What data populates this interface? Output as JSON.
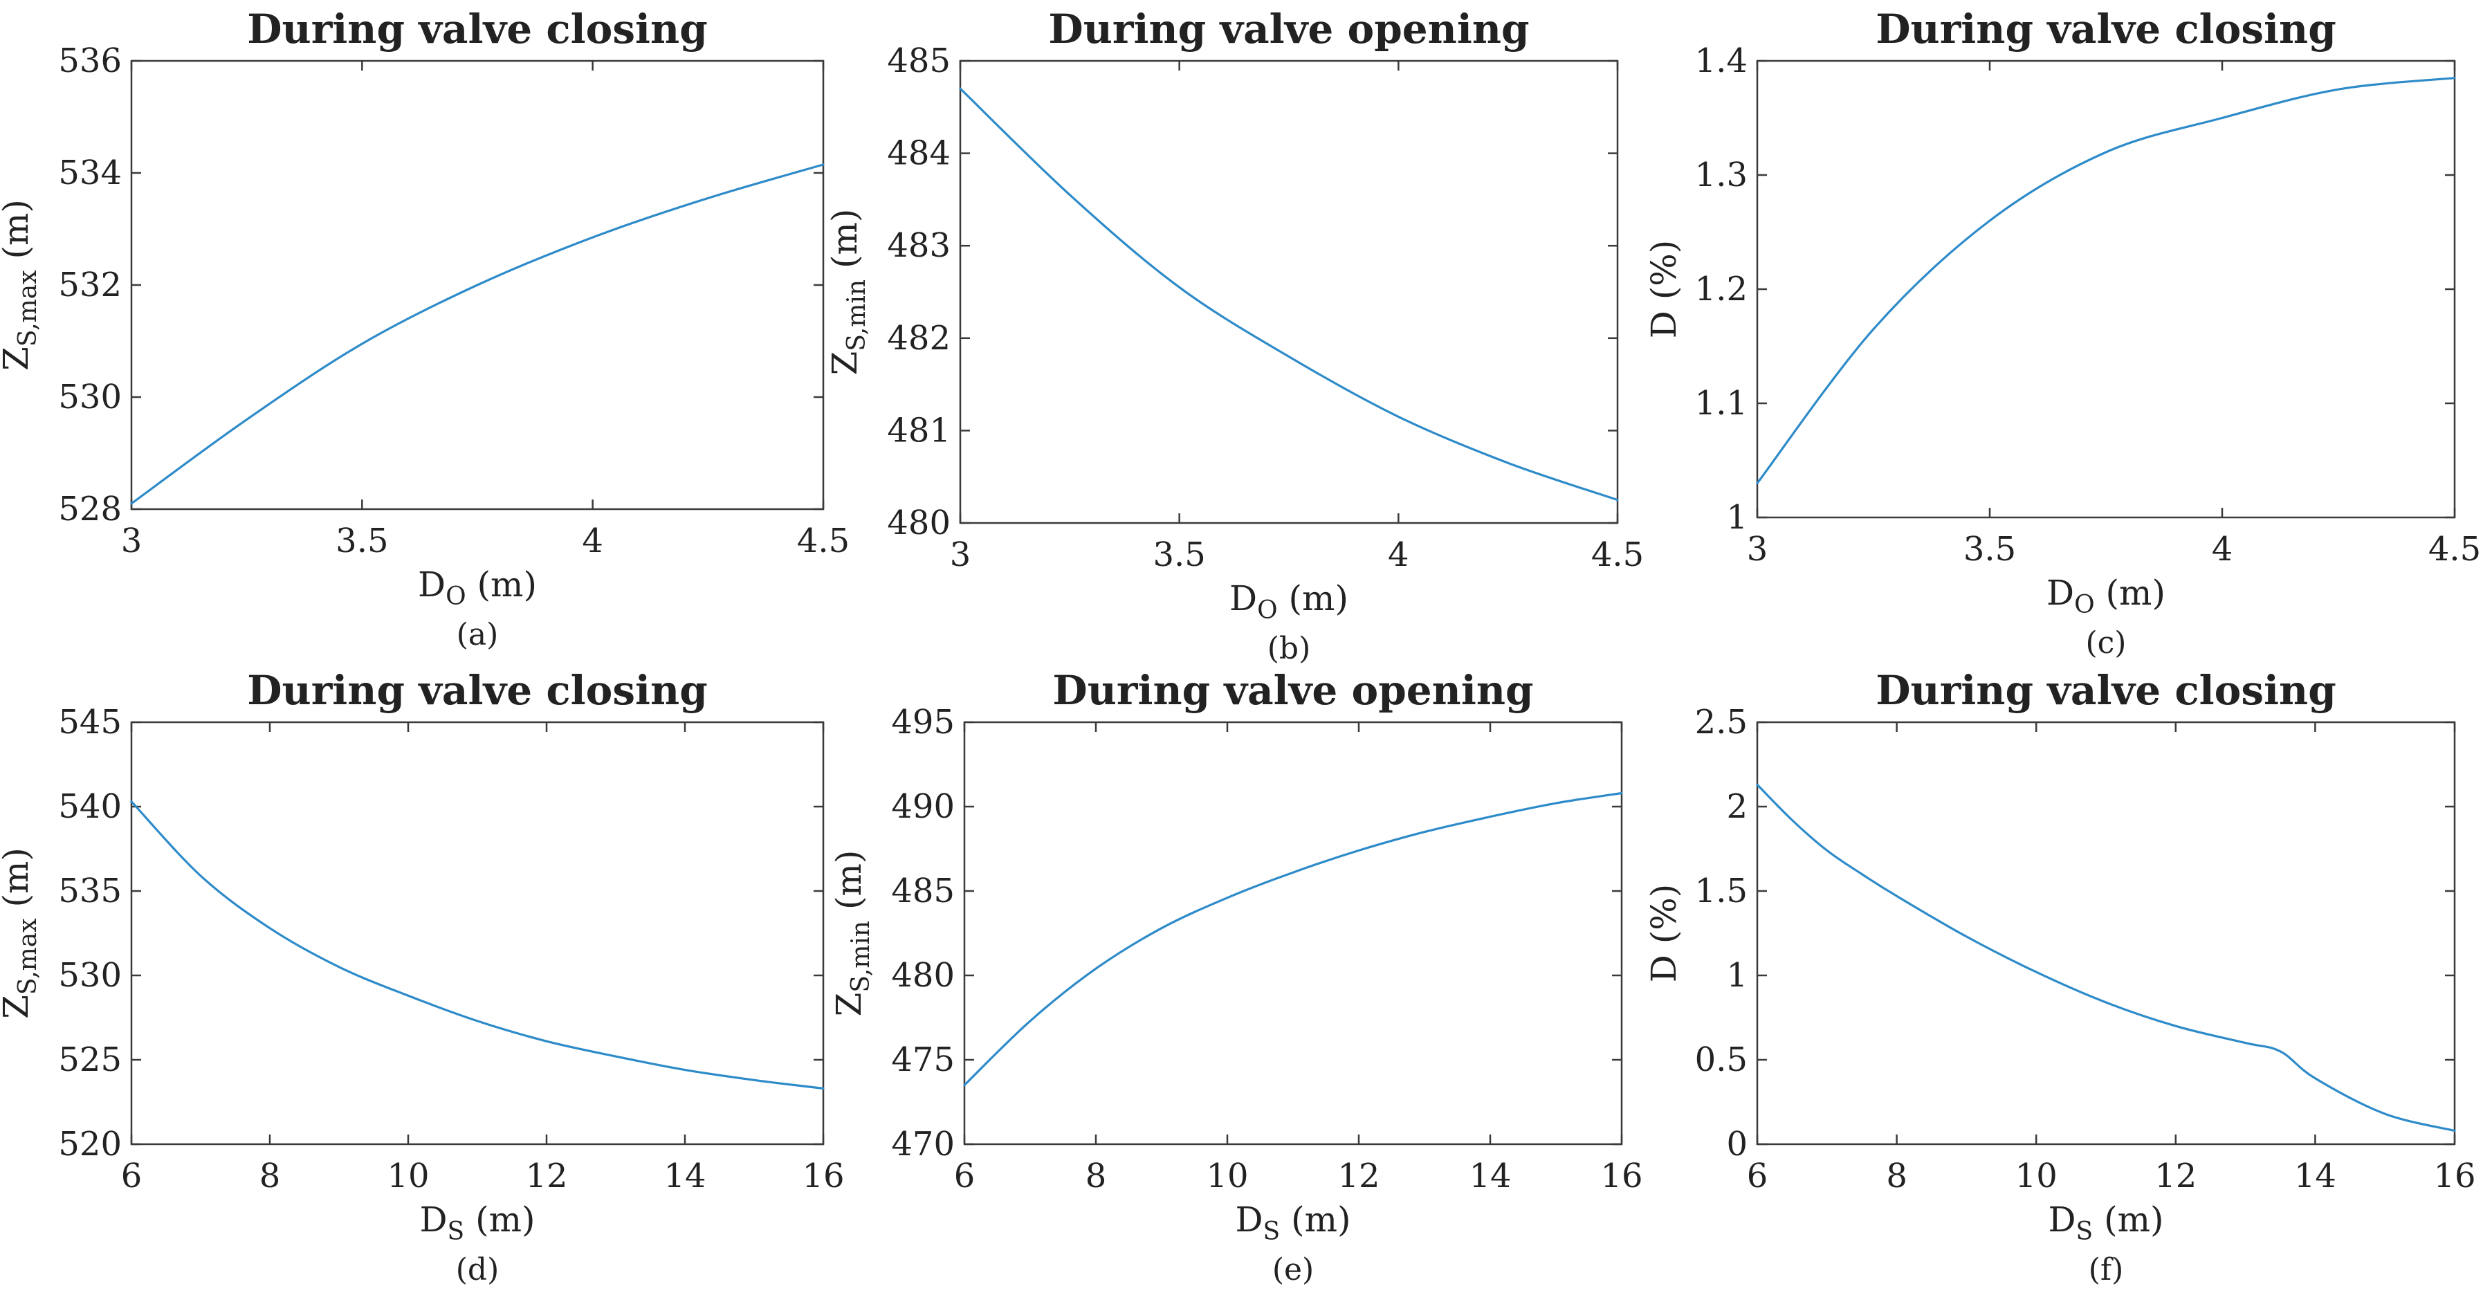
{
  "colors": {
    "line": "#2e8bc9",
    "axis": "#3a3a3a",
    "text": "#222222"
  },
  "chart_data": [
    {
      "type": "line",
      "panel": "(a)",
      "title": "During valve closing",
      "xlabel": {
        "main": "D",
        "sub": "O",
        "unit": "(m)"
      },
      "ylabel": {
        "main": "Z",
        "sub": "S,max",
        "unit": "(m)"
      },
      "xlim": [
        3,
        4.5
      ],
      "ylim": [
        528,
        536
      ],
      "xticks": [
        3,
        3.5,
        4,
        4.5
      ],
      "xtick_labels": [
        "3",
        "3.5",
        "4",
        "4.5"
      ],
      "yticks": [
        528,
        530,
        532,
        534,
        536
      ],
      "ytick_labels": [
        "528",
        "530",
        "532",
        "534",
        "536"
      ],
      "x": [
        3,
        3.25,
        3.5,
        3.75,
        4,
        4.25,
        4.5
      ],
      "y": [
        528.1,
        529.6,
        530.95,
        532.0,
        532.85,
        533.55,
        534.15
      ]
    },
    {
      "type": "line",
      "panel": "(b)",
      "title": "During valve opening",
      "xlabel": {
        "main": "D",
        "sub": "O",
        "unit": "(m)"
      },
      "ylabel": {
        "main": "Z",
        "sub": "S,min",
        "unit": "(m)"
      },
      "xlim": [
        3,
        4.5
      ],
      "ylim": [
        480,
        485
      ],
      "xticks": [
        3,
        3.5,
        4,
        4.5
      ],
      "xtick_labels": [
        "3",
        "3.5",
        "4",
        "4.5"
      ],
      "yticks": [
        480,
        481,
        482,
        483,
        484,
        485
      ],
      "ytick_labels": [
        "480",
        "481",
        "482",
        "483",
        "484",
        "485"
      ],
      "x": [
        3,
        3.25,
        3.5,
        3.75,
        4,
        4.25,
        4.5
      ],
      "y": [
        484.7,
        483.55,
        482.55,
        481.8,
        481.15,
        480.65,
        480.25
      ]
    },
    {
      "type": "line",
      "panel": "(c)",
      "title": "During valve closing",
      "xlabel": {
        "main": "D",
        "sub": "O",
        "unit": "(m)"
      },
      "ylabel": {
        "main": "D",
        "sub": "",
        "unit": "(%)"
      },
      "xlim": [
        3,
        4.5
      ],
      "ylim": [
        1,
        1.4
      ],
      "xticks": [
        3,
        3.5,
        4,
        4.5
      ],
      "xtick_labels": [
        "3",
        "3.5",
        "4",
        "4.5"
      ],
      "yticks": [
        1,
        1.1,
        1.2,
        1.3,
        1.4
      ],
      "ytick_labels": [
        "1",
        "1.1",
        "1.2",
        "1.3",
        "1.4"
      ],
      "x": [
        3,
        3.25,
        3.5,
        3.75,
        4,
        4.25,
        4.5
      ],
      "y": [
        1.03,
        1.165,
        1.26,
        1.32,
        1.35,
        1.375,
        1.385
      ]
    },
    {
      "type": "line",
      "panel": "(d)",
      "title": "During valve closing",
      "xlabel": {
        "main": "D",
        "sub": "S",
        "unit": "(m)"
      },
      "ylabel": {
        "main": "Z",
        "sub": "S,max",
        "unit": "(m)"
      },
      "xlim": [
        6,
        16
      ],
      "ylim": [
        520,
        545
      ],
      "xticks": [
        6,
        8,
        10,
        12,
        14,
        16
      ],
      "xtick_labels": [
        "6",
        "8",
        "10",
        "12",
        "14",
        "16"
      ],
      "yticks": [
        520,
        525,
        530,
        535,
        540,
        545
      ],
      "ytick_labels": [
        "520",
        "525",
        "530",
        "535",
        "540",
        "545"
      ],
      "x": [
        6,
        7,
        8,
        9,
        10,
        11,
        12,
        13,
        14,
        15,
        16
      ],
      "y": [
        540.3,
        535.9,
        532.8,
        530.5,
        528.8,
        527.3,
        526.1,
        525.2,
        524.4,
        523.8,
        523.3
      ]
    },
    {
      "type": "line",
      "panel": "(e)",
      "title": "During valve opening",
      "xlabel": {
        "main": "D",
        "sub": "S",
        "unit": "(m)"
      },
      "ylabel": {
        "main": "Z",
        "sub": "S,min",
        "unit": "(m)"
      },
      "xlim": [
        6,
        16
      ],
      "ylim": [
        470,
        495
      ],
      "xticks": [
        6,
        8,
        10,
        12,
        14,
        16
      ],
      "xtick_labels": [
        "6",
        "8",
        "10",
        "12",
        "14",
        "16"
      ],
      "yticks": [
        470,
        475,
        480,
        485,
        490,
        495
      ],
      "ytick_labels": [
        "470",
        "475",
        "480",
        "485",
        "490",
        "495"
      ],
      "x": [
        6,
        7,
        8,
        9,
        10,
        11,
        12,
        13,
        14,
        15,
        16
      ],
      "y": [
        473.5,
        477.3,
        480.4,
        482.8,
        484.6,
        486.1,
        487.4,
        488.5,
        489.4,
        490.2,
        490.8
      ]
    },
    {
      "type": "line",
      "panel": "(f)",
      "title": "During valve closing",
      "xlabel": {
        "main": "D",
        "sub": "S",
        "unit": "(m)"
      },
      "ylabel": {
        "main": "D",
        "sub": "",
        "unit": "(%)"
      },
      "xlim": [
        6,
        16
      ],
      "ylim": [
        0,
        2.5
      ],
      "xticks": [
        6,
        8,
        10,
        12,
        14,
        16
      ],
      "xtick_labels": [
        "6",
        "8",
        "10",
        "12",
        "14",
        "16"
      ],
      "yticks": [
        0,
        0.5,
        1,
        1.5,
        2,
        2.5
      ],
      "ytick_labels": [
        "0",
        "0.5",
        "1",
        "1.5",
        "2",
        "2.5"
      ],
      "x": [
        6,
        6.5,
        7,
        7.5,
        8,
        9,
        10,
        11,
        12,
        13,
        13.5,
        14,
        15,
        16
      ],
      "y": [
        2.13,
        1.92,
        1.74,
        1.6,
        1.47,
        1.23,
        1.02,
        0.84,
        0.7,
        0.6,
        0.55,
        0.39,
        0.18,
        0.08
      ]
    }
  ]
}
